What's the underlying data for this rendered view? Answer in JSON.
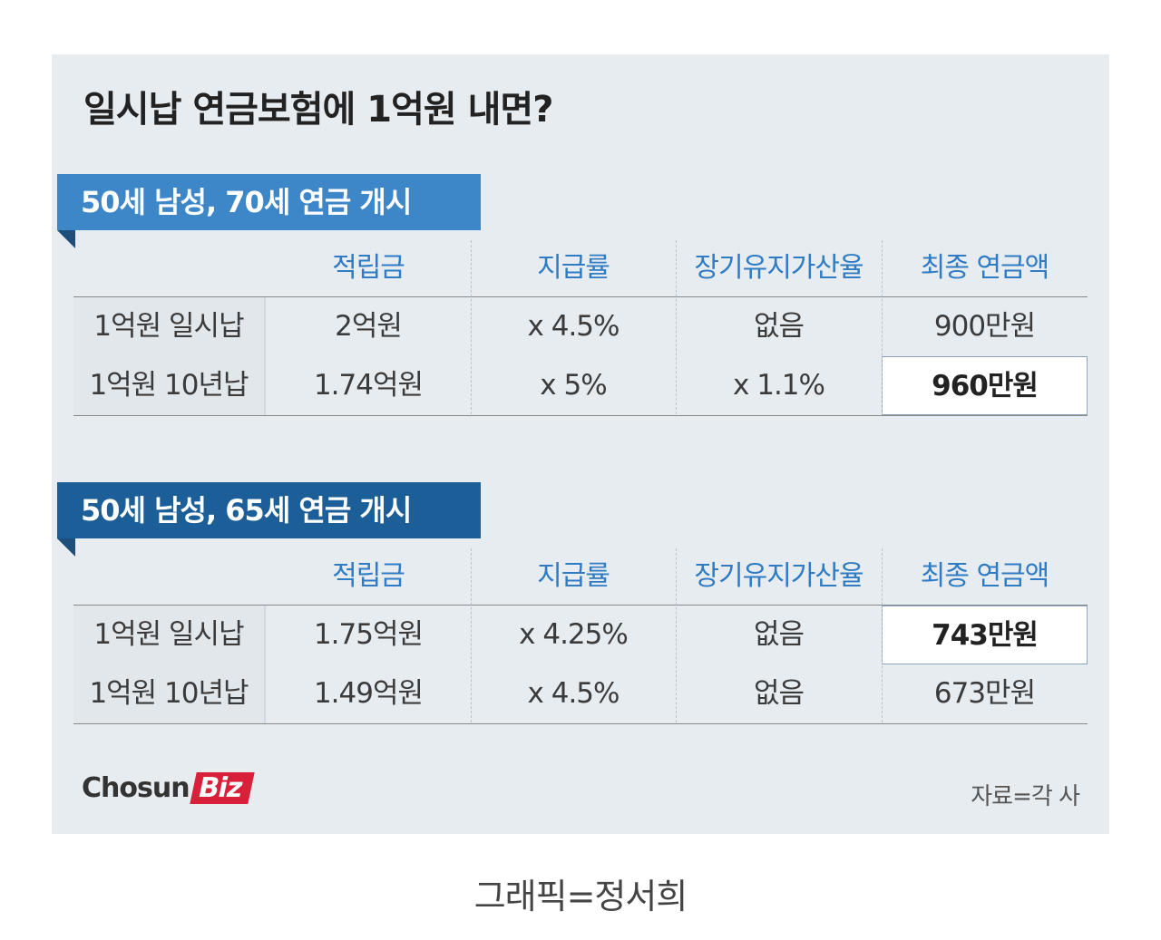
{
  "title": "일시납 연금보험에 1억원 내면?",
  "headers": [
    "적립금",
    "지급률",
    "장기유지가산율",
    "최종 연금액"
  ],
  "sections": [
    {
      "title": "50세 남성, 70세 연금 개시",
      "rows": [
        {
          "label": "1억원 일시납",
          "cells": [
            "2억원",
            "x 4.5%",
            "없음",
            "900만원"
          ]
        },
        {
          "label": "1억원 10년납",
          "cells": [
            "1.74억원",
            "x 5%",
            "x 1.1%",
            "960만원"
          ]
        }
      ]
    },
    {
      "title": "50세 남성, 65세 연금 개시",
      "rows": [
        {
          "label": "1억원 일시납",
          "cells": [
            "1.75억원",
            "x 4.25%",
            "없음",
            "743만원"
          ]
        },
        {
          "label": "1억원 10년납",
          "cells": [
            "1.49억원",
            "x 4.5%",
            "없음",
            "673만원"
          ]
        }
      ]
    }
  ],
  "logo": {
    "main": "Chosun",
    "badge": "Biz"
  },
  "source": "자료=각 사",
  "credit": "그래픽=정서희"
}
